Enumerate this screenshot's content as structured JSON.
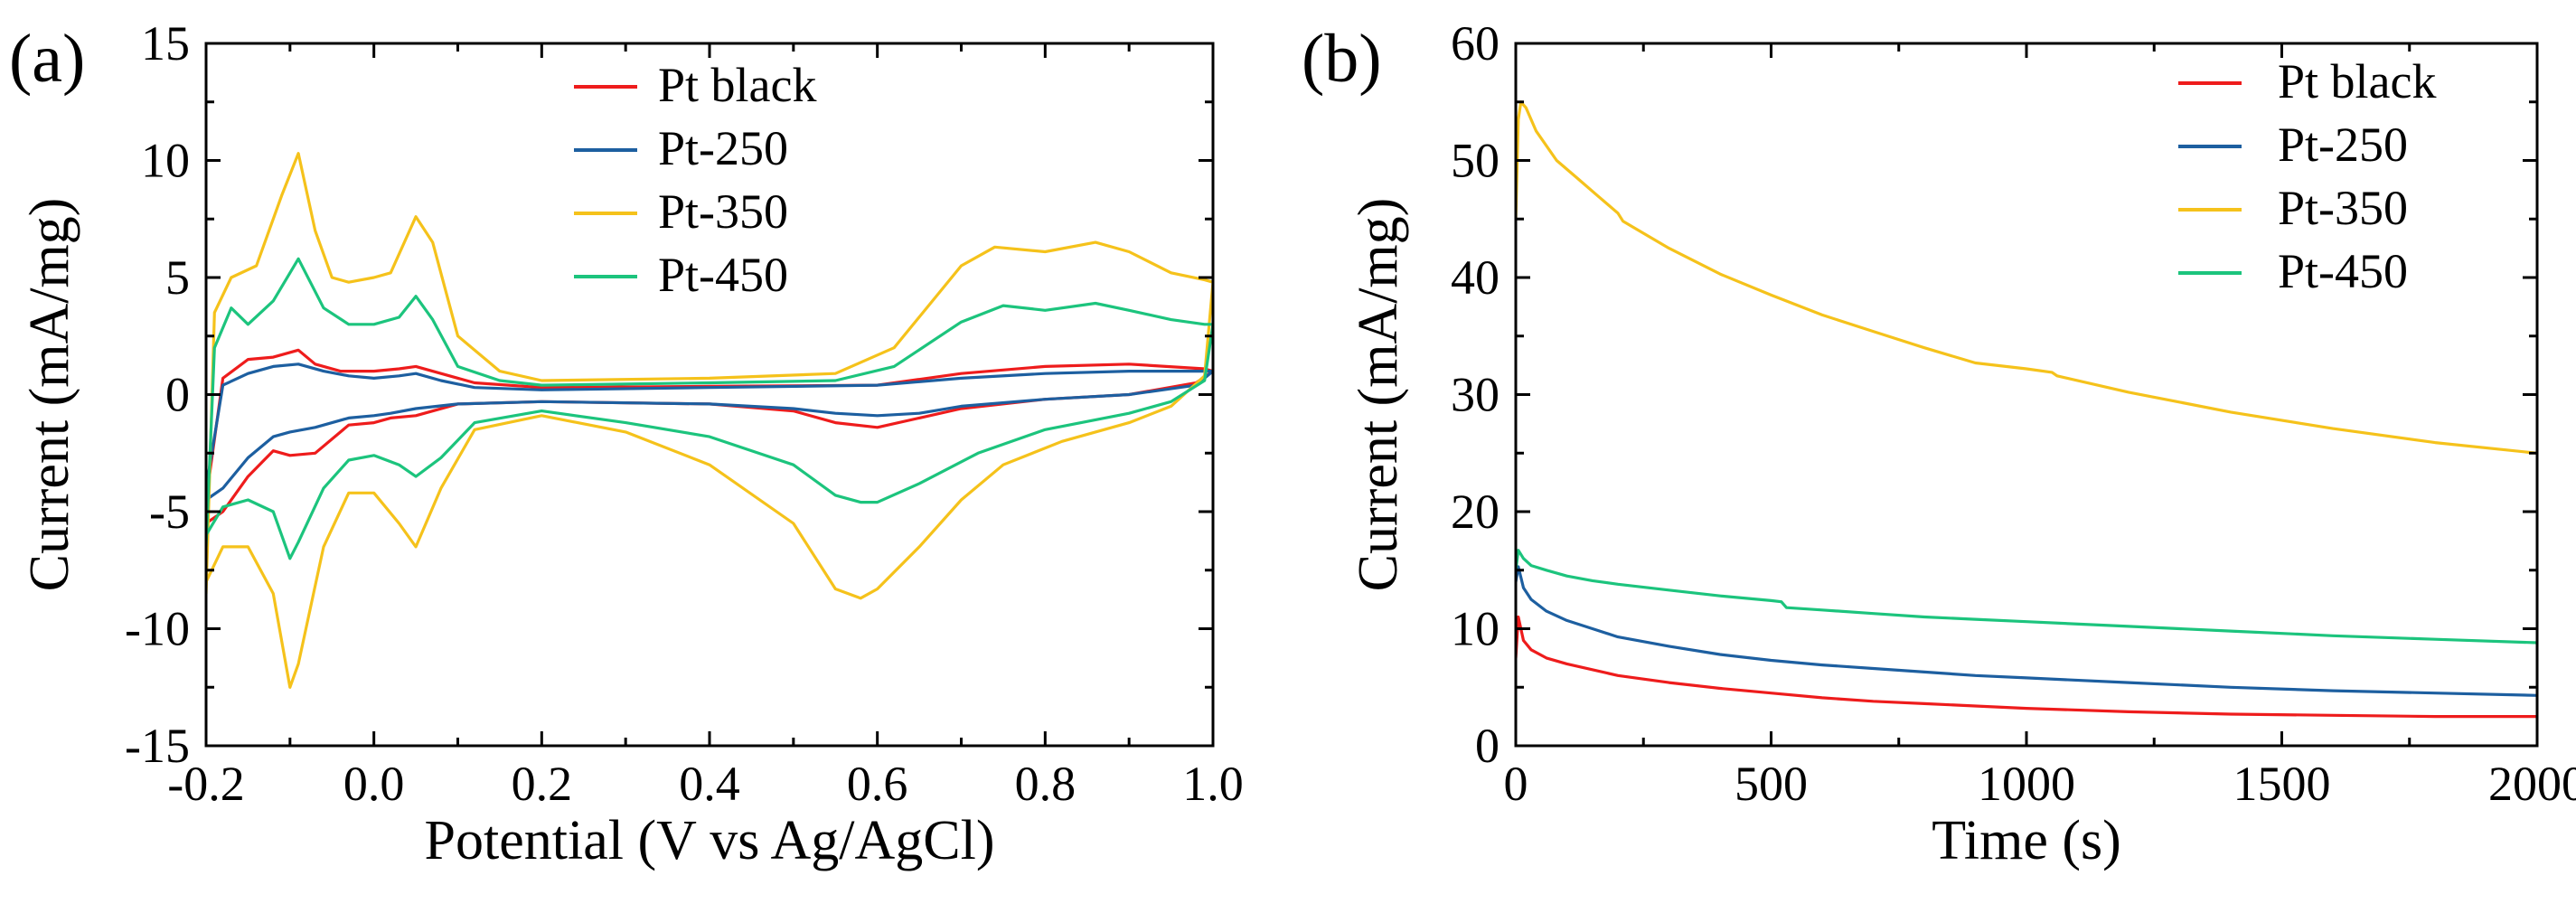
{
  "chart_data": [
    {
      "panel_label": "(a)",
      "type": "line",
      "xlabel": "Potential (V vs Ag/AgCl)",
      "ylabel": "Current (mA/mg)",
      "xlim": [
        -0.2,
        1.0
      ],
      "ylim": [
        -15,
        15
      ],
      "x_ticks": [
        "-0.2",
        "0.0",
        "0.2",
        "0.4",
        "0.6",
        "0.8",
        "1.0"
      ],
      "x_tick_values": [
        -0.2,
        0.0,
        0.2,
        0.4,
        0.6,
        0.8,
        1.0
      ],
      "y_ticks": [
        "-15",
        "-10",
        "-5",
        "0",
        "5",
        "10",
        "15"
      ],
      "y_tick_values": [
        -15,
        -10,
        -5,
        0,
        5,
        10,
        15
      ],
      "legend_position": "top-center",
      "series": [
        {
          "name": "Pt black",
          "color": "#ee1c1c",
          "x": [
            -0.2,
            -0.18,
            -0.15,
            -0.12,
            -0.09,
            -0.07,
            -0.04,
            0.0,
            0.03,
            0.05,
            0.08,
            0.12,
            0.2,
            0.4,
            0.6,
            0.7,
            0.8,
            0.9,
            0.99,
            1.0,
            0.98,
            0.9,
            0.8,
            0.7,
            0.65,
            0.6,
            0.55,
            0.5,
            0.4,
            0.2,
            0.1,
            0.05,
            0.02,
            0.0,
            -0.03,
            -0.07,
            -0.1,
            -0.12,
            -0.15,
            -0.18,
            -0.2
          ],
          "y": [
            -4.5,
            0.7,
            1.5,
            1.6,
            1.9,
            1.3,
            1.0,
            1.0,
            1.1,
            1.2,
            0.9,
            0.5,
            0.3,
            0.35,
            0.4,
            0.9,
            1.2,
            1.3,
            1.1,
            1.0,
            0.5,
            0.0,
            -0.2,
            -0.6,
            -1.0,
            -1.4,
            -1.2,
            -0.7,
            -0.4,
            -0.3,
            -0.4,
            -0.9,
            -1.0,
            -1.2,
            -1.3,
            -2.5,
            -2.6,
            -2.4,
            -3.5,
            -5.0,
            -5.5
          ]
        },
        {
          "name": "Pt-250",
          "color": "#1d5fa0",
          "x": [
            -0.2,
            -0.18,
            -0.15,
            -0.12,
            -0.09,
            -0.06,
            -0.03,
            0.0,
            0.03,
            0.05,
            0.08,
            0.12,
            0.2,
            0.4,
            0.6,
            0.7,
            0.8,
            0.9,
            0.99,
            1.0,
            0.98,
            0.9,
            0.8,
            0.7,
            0.65,
            0.6,
            0.55,
            0.5,
            0.4,
            0.2,
            0.1,
            0.05,
            0.02,
            0.0,
            -0.03,
            -0.07,
            -0.1,
            -0.12,
            -0.15,
            -0.18,
            -0.2
          ],
          "y": [
            -4.0,
            0.4,
            0.9,
            1.2,
            1.3,
            1.0,
            0.8,
            0.7,
            0.8,
            0.9,
            0.6,
            0.3,
            0.2,
            0.3,
            0.4,
            0.7,
            0.9,
            1.0,
            1.0,
            1.0,
            0.4,
            0.0,
            -0.2,
            -0.5,
            -0.8,
            -0.9,
            -0.8,
            -0.6,
            -0.4,
            -0.3,
            -0.4,
            -0.6,
            -0.8,
            -0.9,
            -1.0,
            -1.4,
            -1.6,
            -1.8,
            -2.7,
            -4.0,
            -4.5
          ]
        },
        {
          "name": "Pt-350",
          "color": "#f5c21b",
          "x": [
            -0.2,
            -0.19,
            -0.17,
            -0.14,
            -0.11,
            -0.09,
            -0.07,
            -0.05,
            -0.03,
            0.0,
            0.02,
            0.05,
            0.07,
            0.1,
            0.15,
            0.2,
            0.4,
            0.55,
            0.62,
            0.7,
            0.74,
            0.8,
            0.86,
            0.9,
            0.95,
            0.99,
            1.0,
            0.99,
            0.95,
            0.9,
            0.82,
            0.75,
            0.7,
            0.65,
            0.6,
            0.58,
            0.55,
            0.5,
            0.4,
            0.3,
            0.2,
            0.12,
            0.08,
            0.05,
            0.03,
            0.0,
            -0.03,
            -0.06,
            -0.09,
            -0.1,
            -0.12,
            -0.15,
            -0.18,
            -0.2
          ],
          "y": [
            -8.5,
            3.5,
            5.0,
            5.5,
            8.5,
            10.3,
            7.0,
            5.0,
            4.8,
            5.0,
            5.2,
            7.6,
            6.5,
            2.5,
            1.0,
            0.6,
            0.7,
            0.9,
            2.0,
            5.5,
            6.3,
            6.1,
            6.5,
            6.1,
            5.2,
            4.9,
            4.8,
            0.8,
            -0.5,
            -1.2,
            -2.0,
            -3.0,
            -4.5,
            -6.5,
            -8.3,
            -8.7,
            -8.3,
            -5.5,
            -3.0,
            -1.6,
            -0.9,
            -1.5,
            -4.0,
            -6.5,
            -5.5,
            -4.2,
            -4.2,
            -6.5,
            -11.5,
            -12.5,
            -8.5,
            -6.5,
            -6.5,
            -8.0
          ]
        },
        {
          "name": "Pt-450",
          "color": "#1cc47d",
          "x": [
            -0.2,
            -0.19,
            -0.17,
            -0.15,
            -0.12,
            -0.09,
            -0.06,
            -0.03,
            -0.01,
            0.0,
            0.03,
            0.05,
            0.07,
            0.1,
            0.15,
            0.2,
            0.4,
            0.55,
            0.62,
            0.7,
            0.75,
            0.8,
            0.86,
            0.9,
            0.95,
            0.99,
            1.0,
            0.99,
            0.95,
            0.9,
            0.8,
            0.72,
            0.65,
            0.6,
            0.58,
            0.55,
            0.5,
            0.4,
            0.3,
            0.2,
            0.12,
            0.08,
            0.05,
            0.03,
            0.0,
            -0.03,
            -0.06,
            -0.09,
            -0.1,
            -0.12,
            -0.15,
            -0.18,
            -0.2
          ],
          "y": [
            -6.5,
            2.0,
            3.7,
            3.0,
            4.0,
            5.8,
            3.7,
            3.0,
            3.0,
            3.0,
            3.3,
            4.2,
            3.2,
            1.2,
            0.6,
            0.4,
            0.5,
            0.6,
            1.2,
            3.1,
            3.8,
            3.6,
            3.9,
            3.6,
            3.2,
            3.0,
            3.0,
            0.6,
            -0.3,
            -0.8,
            -1.5,
            -2.5,
            -3.8,
            -4.6,
            -4.6,
            -4.3,
            -3.0,
            -1.8,
            -1.2,
            -0.7,
            -1.2,
            -2.7,
            -3.5,
            -3.0,
            -2.6,
            -2.8,
            -4.0,
            -6.3,
            -7.0,
            -5.0,
            -4.5,
            -4.8,
            -6.0
          ]
        }
      ]
    },
    {
      "panel_label": "(b)",
      "type": "line",
      "xlabel": "Time (s)",
      "ylabel": "Current (mA/mg)",
      "xlim": [
        0,
        2000
      ],
      "ylim": [
        0,
        60
      ],
      "x_ticks": [
        "0",
        "500",
        "1000",
        "1500",
        "2000"
      ],
      "x_tick_values": [
        0,
        500,
        1000,
        1500,
        2000
      ],
      "y_ticks": [
        "0",
        "10",
        "20",
        "30",
        "40",
        "50",
        "60"
      ],
      "y_tick_values": [
        0,
        10,
        20,
        30,
        40,
        50,
        60
      ],
      "legend_position": "top-right",
      "series": [
        {
          "name": "Pt black",
          "color": "#ee1c1c",
          "x": [
            0,
            5,
            15,
            30,
            60,
            100,
            200,
            300,
            400,
            500,
            600,
            700,
            800,
            900,
            1000,
            1200,
            1400,
            1600,
            1800,
            2000
          ],
          "y": [
            7.5,
            11.0,
            9.0,
            8.2,
            7.5,
            7.0,
            6.0,
            5.4,
            4.9,
            4.5,
            4.1,
            3.8,
            3.6,
            3.4,
            3.2,
            2.9,
            2.7,
            2.6,
            2.5,
            2.5
          ]
        },
        {
          "name": "Pt-250",
          "color": "#1d5fa0",
          "x": [
            0,
            5,
            15,
            30,
            60,
            100,
            150,
            200,
            300,
            400,
            500,
            600,
            700,
            800,
            900,
            1000,
            1200,
            1400,
            1600,
            1800,
            2000
          ],
          "y": [
            14.0,
            15.3,
            13.5,
            12.5,
            11.5,
            10.7,
            10.0,
            9.3,
            8.5,
            7.8,
            7.3,
            6.9,
            6.6,
            6.3,
            6.0,
            5.8,
            5.4,
            5.0,
            4.7,
            4.5,
            4.3
          ]
        },
        {
          "name": "Pt-350",
          "color": "#f5c21b",
          "x": [
            0,
            5,
            10,
            20,
            40,
            80,
            120,
            160,
            200,
            210,
            300,
            400,
            500,
            600,
            700,
            800,
            900,
            1000,
            1050,
            1060,
            1200,
            1400,
            1600,
            1800,
            2000
          ],
          "y": [
            45.0,
            53.5,
            55.0,
            54.5,
            52.5,
            50.0,
            48.5,
            47.0,
            45.5,
            44.8,
            42.5,
            40.3,
            38.5,
            36.8,
            35.4,
            34.0,
            32.7,
            32.2,
            31.9,
            31.6,
            30.2,
            28.5,
            27.1,
            25.9,
            25.0
          ]
        },
        {
          "name": "Pt-450",
          "color": "#1cc47d",
          "x": [
            0,
            5,
            15,
            30,
            60,
            100,
            150,
            200,
            300,
            400,
            500,
            520,
            530,
            600,
            700,
            800,
            900,
            1000,
            1200,
            1400,
            1600,
            1800,
            2000
          ],
          "y": [
            15.0,
            16.7,
            16.0,
            15.4,
            15.0,
            14.5,
            14.1,
            13.8,
            13.3,
            12.8,
            12.4,
            12.3,
            11.8,
            11.6,
            11.3,
            11.0,
            10.8,
            10.6,
            10.2,
            9.8,
            9.4,
            9.1,
            8.8
          ]
        }
      ]
    }
  ]
}
